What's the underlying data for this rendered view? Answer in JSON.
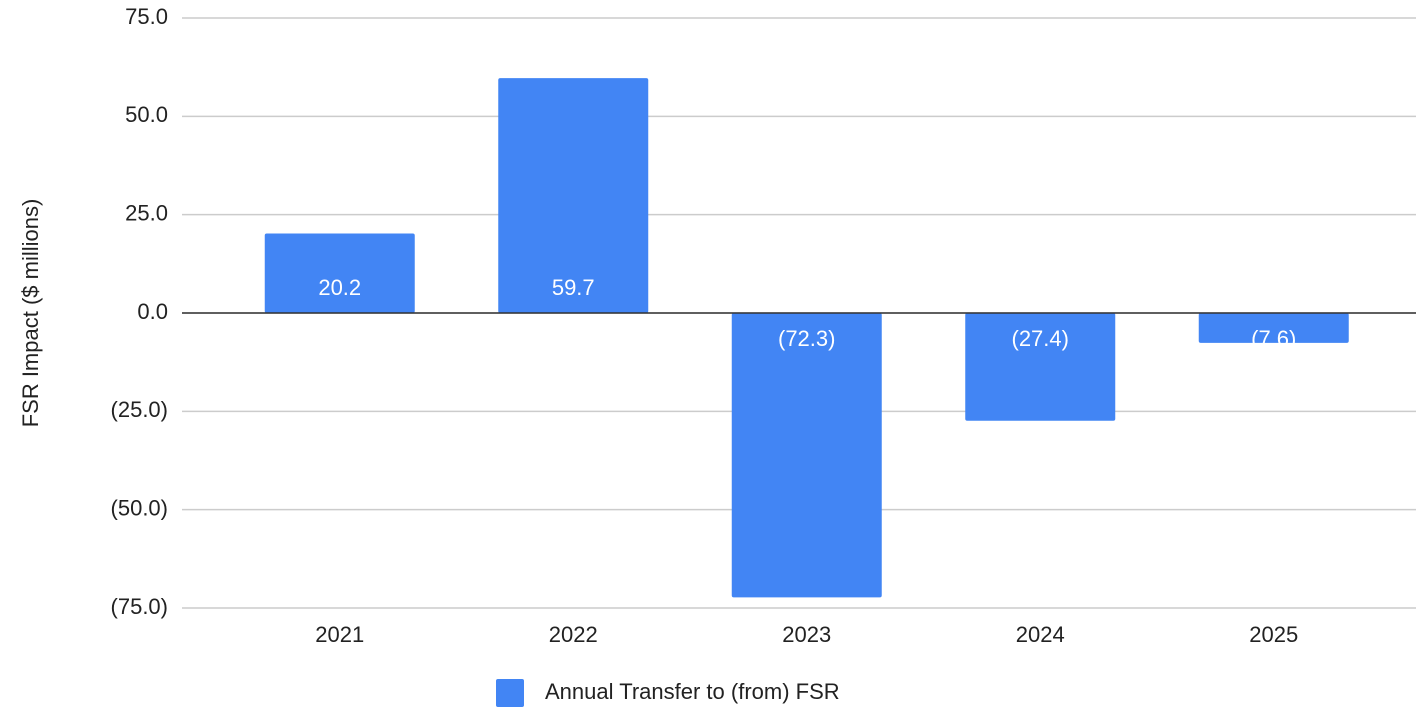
{
  "chart_data": {
    "type": "bar",
    "y_axis_label": "FSR Impact ($ millions)",
    "categories": [
      "2021",
      "2022",
      "2023",
      "2024",
      "2025"
    ],
    "series": [
      {
        "name": "Annual Transfer to (from) FSR",
        "color": "#4285f4",
        "values": [
          20.2,
          59.7,
          -72.3,
          -27.4,
          -7.6
        ],
        "value_labels": [
          "20.2",
          "59.7",
          "(72.3)",
          "(27.4)",
          "(7.6)"
        ]
      }
    ],
    "ylim": [
      -75,
      75
    ],
    "yticks": [
      {
        "value": -75,
        "label": "(75.0)"
      },
      {
        "value": -50,
        "label": "(50.0)"
      },
      {
        "value": -25,
        "label": "(25.0)"
      },
      {
        "value": 0,
        "label": "0.0"
      },
      {
        "value": 25,
        "label": "25.0"
      },
      {
        "value": 50,
        "label": "50.0"
      },
      {
        "value": 75,
        "label": "75.0"
      }
    ],
    "grid": true,
    "legend": "bottom"
  }
}
